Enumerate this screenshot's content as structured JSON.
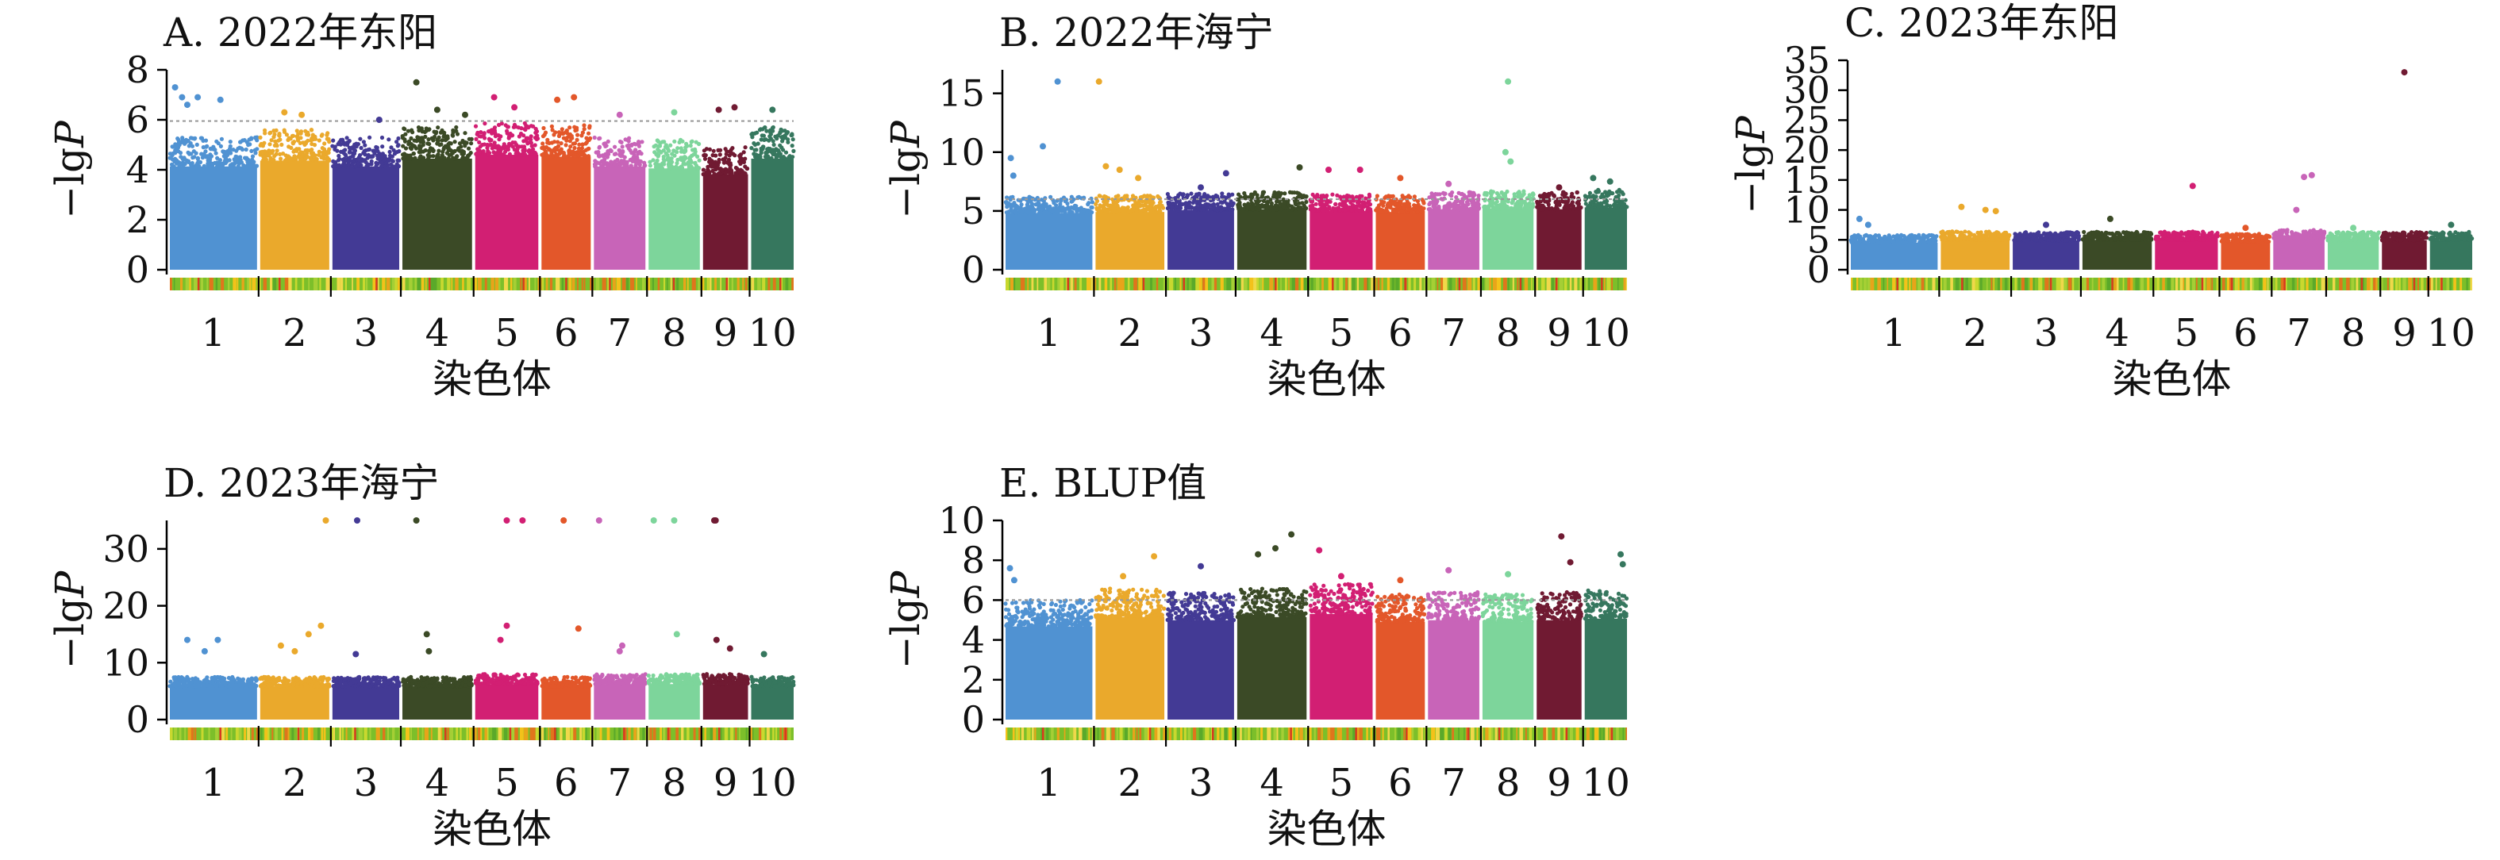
{
  "chromosome_colors": [
    "#5092D2",
    "#EAA92C",
    "#433A95",
    "#3B4A26",
    "#D21F73",
    "#E3572A",
    "#C864B8",
    "#7DD59B",
    "#701A32",
    "#36775E"
  ],
  "chart_data": [
    {
      "type": "scatter",
      "subtype": "manhattan",
      "title": "A. 2022年东阳",
      "xlabel": "染色体",
      "ylabel_prefix": "−lg",
      "ylabel_italic": "P",
      "categories": [
        "1",
        "2",
        "3",
        "4",
        "5",
        "6",
        "7",
        "8",
        "9",
        "10"
      ],
      "yticks": [
        0,
        2,
        4,
        6,
        8
      ],
      "ylim": [
        0,
        8
      ],
      "threshold": 5.95,
      "chromosome_lengths_mb": [
        308,
        244,
        236,
        246,
        223,
        174,
        182,
        181,
        159,
        150
      ],
      "bulk_max": [
        5.3,
        5.6,
        5.3,
        5.7,
        5.9,
        5.8,
        5.3,
        5.2,
        4.9,
        5.7
      ],
      "outliers": [
        {
          "chr": 1,
          "pos": 0.06,
          "y": 7.3
        },
        {
          "chr": 1,
          "pos": 0.14,
          "y": 6.9
        },
        {
          "chr": 1,
          "pos": 0.2,
          "y": 6.6
        },
        {
          "chr": 1,
          "pos": 0.32,
          "y": 6.9
        },
        {
          "chr": 1,
          "pos": 0.58,
          "y": 6.8
        },
        {
          "chr": 2,
          "pos": 0.35,
          "y": 6.3
        },
        {
          "chr": 2,
          "pos": 0.6,
          "y": 6.2
        },
        {
          "chr": 3,
          "pos": 0.7,
          "y": 6.0
        },
        {
          "chr": 4,
          "pos": 0.2,
          "y": 7.5
        },
        {
          "chr": 4,
          "pos": 0.5,
          "y": 6.4
        },
        {
          "chr": 4,
          "pos": 0.9,
          "y": 6.2
        },
        {
          "chr": 5,
          "pos": 0.3,
          "y": 6.9
        },
        {
          "chr": 5,
          "pos": 0.62,
          "y": 6.5
        },
        {
          "chr": 6,
          "pos": 0.32,
          "y": 6.8
        },
        {
          "chr": 6,
          "pos": 0.66,
          "y": 6.9
        },
        {
          "chr": 7,
          "pos": 0.5,
          "y": 6.2
        },
        {
          "chr": 8,
          "pos": 0.5,
          "y": 6.3
        },
        {
          "chr": 9,
          "pos": 0.35,
          "y": 6.4
        },
        {
          "chr": 9,
          "pos": 0.7,
          "y": 6.5
        },
        {
          "chr": 10,
          "pos": 0.5,
          "y": 6.4
        }
      ]
    },
    {
      "type": "scatter",
      "subtype": "manhattan",
      "title": "B. 2022年海宁",
      "xlabel": "染色体",
      "ylabel_prefix": "−lg",
      "ylabel_italic": "P",
      "categories": [
        "1",
        "2",
        "3",
        "4",
        "5",
        "6",
        "7",
        "8",
        "9",
        "10"
      ],
      "yticks": [
        0,
        5,
        10,
        15
      ],
      "ylim": [
        0,
        17
      ],
      "threshold": 6.0,
      "chromosome_lengths_mb": [
        308,
        244,
        236,
        246,
        223,
        174,
        182,
        181,
        159,
        150
      ],
      "bulk_max": [
        6.2,
        6.3,
        6.5,
        6.6,
        6.4,
        6.3,
        6.6,
        6.7,
        6.6,
        6.8
      ],
      "outliers": [
        {
          "chr": 1,
          "pos": 0.06,
          "y": 9.5
        },
        {
          "chr": 1,
          "pos": 0.09,
          "y": 8.0
        },
        {
          "chr": 1,
          "pos": 0.43,
          "y": 10.5
        },
        {
          "chr": 1,
          "pos": 0.6,
          "y": 16.0
        },
        {
          "chr": 2,
          "pos": 0.05,
          "y": 16.0
        },
        {
          "chr": 2,
          "pos": 0.15,
          "y": 8.8
        },
        {
          "chr": 2,
          "pos": 0.35,
          "y": 8.5
        },
        {
          "chr": 2,
          "pos": 0.62,
          "y": 7.8
        },
        {
          "chr": 3,
          "pos": 0.5,
          "y": 7.0
        },
        {
          "chr": 3,
          "pos": 0.88,
          "y": 8.2
        },
        {
          "chr": 4,
          "pos": 0.9,
          "y": 8.7
        },
        {
          "chr": 5,
          "pos": 0.3,
          "y": 8.5
        },
        {
          "chr": 5,
          "pos": 0.8,
          "y": 8.5
        },
        {
          "chr": 6,
          "pos": 0.5,
          "y": 7.8
        },
        {
          "chr": 7,
          "pos": 0.4,
          "y": 7.3
        },
        {
          "chr": 8,
          "pos": 0.5,
          "y": 16.0
        },
        {
          "chr": 8,
          "pos": 0.45,
          "y": 10.0
        },
        {
          "chr": 8,
          "pos": 0.55,
          "y": 9.2
        },
        {
          "chr": 9,
          "pos": 0.5,
          "y": 7.0
        },
        {
          "chr": 10,
          "pos": 0.2,
          "y": 7.8
        },
        {
          "chr": 10,
          "pos": 0.6,
          "y": 7.5
        }
      ]
    },
    {
      "type": "scatter",
      "subtype": "manhattan",
      "title": "C. 2023年东阳",
      "xlabel": "染色体",
      "ylabel_prefix": "−lg",
      "ylabel_italic": "P",
      "categories": [
        "1",
        "2",
        "3",
        "4",
        "5",
        "6",
        "7",
        "8",
        "9",
        "10"
      ],
      "yticks": [
        0,
        5,
        10,
        15,
        20,
        25,
        30,
        35
      ],
      "ylim": [
        0,
        35
      ],
      "threshold": null,
      "chromosome_lengths_mb": [
        308,
        244,
        236,
        246,
        223,
        174,
        182,
        181,
        159,
        150
      ],
      "bulk_max": [
        5.8,
        6.4,
        6.3,
        6.4,
        6.4,
        6.0,
        6.7,
        6.3,
        6.3,
        6.4
      ],
      "outliers": [
        {
          "chr": 1,
          "pos": 0.1,
          "y": 8.5
        },
        {
          "chr": 1,
          "pos": 0.2,
          "y": 7.5
        },
        {
          "chr": 2,
          "pos": 0.3,
          "y": 10.5
        },
        {
          "chr": 2,
          "pos": 0.65,
          "y": 10.0
        },
        {
          "chr": 2,
          "pos": 0.8,
          "y": 9.8
        },
        {
          "chr": 3,
          "pos": 0.5,
          "y": 7.5
        },
        {
          "chr": 4,
          "pos": 0.4,
          "y": 8.5
        },
        {
          "chr": 5,
          "pos": 0.6,
          "y": 14.0
        },
        {
          "chr": 6,
          "pos": 0.5,
          "y": 7.0
        },
        {
          "chr": 7,
          "pos": 0.45,
          "y": 10.0
        },
        {
          "chr": 7,
          "pos": 0.6,
          "y": 15.5
        },
        {
          "chr": 7,
          "pos": 0.75,
          "y": 15.8
        },
        {
          "chr": 8,
          "pos": 0.5,
          "y": 7.0
        },
        {
          "chr": 9,
          "pos": 0.5,
          "y": 33.0
        },
        {
          "chr": 10,
          "pos": 0.5,
          "y": 7.5
        }
      ]
    },
    {
      "type": "scatter",
      "subtype": "manhattan",
      "title": "D. 2023年海宁",
      "xlabel": "染色体",
      "ylabel_prefix": "−lg",
      "ylabel_italic": "P",
      "categories": [
        "1",
        "2",
        "3",
        "4",
        "5",
        "6",
        "7",
        "8",
        "9",
        "10"
      ],
      "yticks": [
        0,
        10,
        20,
        30
      ],
      "ylim": [
        0,
        35
      ],
      "threshold": null,
      "chromosome_lengths_mb": [
        308,
        244,
        236,
        246,
        223,
        174,
        182,
        181,
        159,
        150
      ],
      "bulk_max": [
        7.5,
        7.5,
        7.5,
        7.5,
        8.0,
        7.5,
        8.0,
        8.0,
        8.0,
        7.5
      ],
      "outliers": [
        {
          "chr": 1,
          "pos": 0.2,
          "y": 14.0
        },
        {
          "chr": 1,
          "pos": 0.4,
          "y": 12.0
        },
        {
          "chr": 1,
          "pos": 0.55,
          "y": 14.0
        },
        {
          "chr": 2,
          "pos": 0.3,
          "y": 13.0
        },
        {
          "chr": 2,
          "pos": 0.5,
          "y": 12.0
        },
        {
          "chr": 2,
          "pos": 0.7,
          "y": 15.0
        },
        {
          "chr": 2,
          "pos": 0.88,
          "y": 16.5
        },
        {
          "chr": 2,
          "pos": 0.95,
          "y": 35.0
        },
        {
          "chr": 3,
          "pos": 0.35,
          "y": 11.5
        },
        {
          "chr": 3,
          "pos": 0.37,
          "y": 35.0
        },
        {
          "chr": 4,
          "pos": 0.2,
          "y": 35.0
        },
        {
          "chr": 4,
          "pos": 0.35,
          "y": 15.0
        },
        {
          "chr": 4,
          "pos": 0.38,
          "y": 12.0
        },
        {
          "chr": 5,
          "pos": 0.4,
          "y": 14.0
        },
        {
          "chr": 5,
          "pos": 0.5,
          "y": 16.5
        },
        {
          "chr": 5,
          "pos": 0.5,
          "y": 35.0
        },
        {
          "chr": 5,
          "pos": 0.75,
          "y": 35.0
        },
        {
          "chr": 6,
          "pos": 0.45,
          "y": 35.0
        },
        {
          "chr": 6,
          "pos": 0.75,
          "y": 16.0
        },
        {
          "chr": 7,
          "pos": 0.1,
          "y": 35.0
        },
        {
          "chr": 7,
          "pos": 0.5,
          "y": 12.0
        },
        {
          "chr": 7,
          "pos": 0.55,
          "y": 13.0
        },
        {
          "chr": 8,
          "pos": 0.1,
          "y": 35.0
        },
        {
          "chr": 8,
          "pos": 0.5,
          "y": 35.0
        },
        {
          "chr": 8,
          "pos": 0.55,
          "y": 15.0
        },
        {
          "chr": 9,
          "pos": 0.25,
          "y": 35.0
        },
        {
          "chr": 9,
          "pos": 0.28,
          "y": 35.0
        },
        {
          "chr": 9,
          "pos": 0.3,
          "y": 14.0
        },
        {
          "chr": 9,
          "pos": 0.6,
          "y": 12.5
        },
        {
          "chr": 10,
          "pos": 0.3,
          "y": 11.5
        }
      ]
    },
    {
      "type": "scatter",
      "subtype": "manhattan",
      "title": "E. BLUP值",
      "xlabel": "染色体",
      "ylabel_prefix": "−lg",
      "ylabel_italic": "P",
      "categories": [
        "1",
        "2",
        "3",
        "4",
        "5",
        "6",
        "7",
        "8",
        "9",
        "10"
      ],
      "yticks": [
        0,
        2,
        4,
        6,
        8,
        10
      ],
      "ylim": [
        0,
        10
      ],
      "threshold": 6.0,
      "chromosome_lengths_mb": [
        308,
        244,
        236,
        246,
        223,
        174,
        182,
        181,
        159,
        150
      ],
      "bulk_max": [
        6.0,
        6.6,
        6.4,
        6.6,
        6.8,
        6.3,
        6.4,
        6.3,
        6.4,
        6.5
      ],
      "outliers": [
        {
          "chr": 1,
          "pos": 0.05,
          "y": 7.6
        },
        {
          "chr": 1,
          "pos": 0.1,
          "y": 7.0
        },
        {
          "chr": 2,
          "pos": 0.4,
          "y": 7.2
        },
        {
          "chr": 2,
          "pos": 0.85,
          "y": 8.2
        },
        {
          "chr": 3,
          "pos": 0.5,
          "y": 7.7
        },
        {
          "chr": 4,
          "pos": 0.3,
          "y": 8.3
        },
        {
          "chr": 4,
          "pos": 0.55,
          "y": 8.6
        },
        {
          "chr": 4,
          "pos": 0.78,
          "y": 9.3
        },
        {
          "chr": 5,
          "pos": 0.15,
          "y": 8.5
        },
        {
          "chr": 5,
          "pos": 0.5,
          "y": 7.2
        },
        {
          "chr": 6,
          "pos": 0.5,
          "y": 7.0
        },
        {
          "chr": 7,
          "pos": 0.4,
          "y": 7.5
        },
        {
          "chr": 8,
          "pos": 0.5,
          "y": 7.3
        },
        {
          "chr": 9,
          "pos": 0.55,
          "y": 9.2
        },
        {
          "chr": 9,
          "pos": 0.75,
          "y": 7.9
        },
        {
          "chr": 10,
          "pos": 0.85,
          "y": 8.3
        },
        {
          "chr": 10,
          "pos": 0.9,
          "y": 7.8
        }
      ]
    }
  ]
}
